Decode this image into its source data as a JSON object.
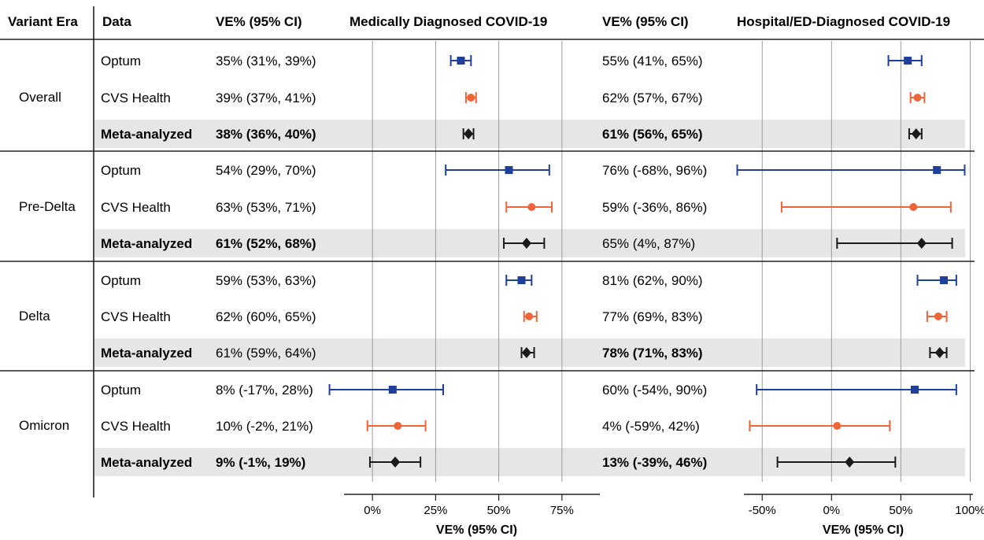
{
  "headers": {
    "era": "Variant Era",
    "data": "Data",
    "ve_left": "VE% (95% CI)",
    "panel_left": "Medically Diagnosed COVID-19",
    "ve_right": "VE% (95% CI)",
    "panel_right": "Hospital/ED-Diagnosed COVID-19"
  },
  "colors": {
    "optum": "#1f3f9c",
    "cvs": "#f0643a",
    "meta": "#1a1a1a",
    "meta_band": "#e6e6e6",
    "grid": "#9a9a9a"
  },
  "chart_data": [
    {
      "type": "forest",
      "title": "Medically Diagnosed COVID-19",
      "xlabel": "VE% (95% CI)",
      "xlim": [
        -15,
        90
      ],
      "ticks": [
        0,
        25,
        50,
        75
      ],
      "tick_labels": [
        "0%",
        "25%",
        "50%",
        "75%"
      ],
      "grid": true,
      "rows": [
        {
          "era": "Overall",
          "source": "Optum",
          "text": "35% (31%, 39%)",
          "ve": 35,
          "lo": 31,
          "hi": 39,
          "marker": "square",
          "series": "optum"
        },
        {
          "era": "Overall",
          "source": "CVS Health",
          "text": "39% (37%, 41%)",
          "ve": 39,
          "lo": 37,
          "hi": 41,
          "marker": "circle",
          "series": "cvs"
        },
        {
          "era": "Overall",
          "source": "Meta-analyzed",
          "text": "38% (36%, 40%)",
          "ve": 38,
          "lo": 36,
          "hi": 40,
          "marker": "diamond",
          "series": "meta",
          "bold": true
        },
        {
          "era": "Pre-Delta",
          "source": "Optum",
          "text": "54% (29%, 70%)",
          "ve": 54,
          "lo": 29,
          "hi": 70,
          "marker": "square",
          "series": "optum"
        },
        {
          "era": "Pre-Delta",
          "source": "CVS Health",
          "text": "63% (53%, 71%)",
          "ve": 63,
          "lo": 53,
          "hi": 71,
          "marker": "circle",
          "series": "cvs"
        },
        {
          "era": "Pre-Delta",
          "source": "Meta-analyzed",
          "text": "61% (52%, 68%)",
          "ve": 61,
          "lo": 52,
          "hi": 68,
          "marker": "diamond",
          "series": "meta",
          "bold": true
        },
        {
          "era": "Delta",
          "source": "Optum",
          "text": "59% (53%, 63%)",
          "ve": 59,
          "lo": 53,
          "hi": 63,
          "marker": "square",
          "series": "optum"
        },
        {
          "era": "Delta",
          "source": "CVS Health",
          "text": "62% (60%, 65%)",
          "ve": 62,
          "lo": 60,
          "hi": 65,
          "marker": "circle",
          "series": "cvs"
        },
        {
          "era": "Delta",
          "source": "Meta-analyzed",
          "text": "61% (59%, 64%)",
          "ve": 61,
          "lo": 59,
          "hi": 64,
          "marker": "diamond",
          "series": "meta",
          "bold": false
        },
        {
          "era": "Omicron",
          "source": "Optum",
          "text": "8% (-17%, 28%)",
          "ve": 8,
          "lo": -17,
          "hi": 28,
          "marker": "square",
          "series": "optum"
        },
        {
          "era": "Omicron",
          "source": "CVS Health",
          "text": "10% (-2%, 21%)",
          "ve": 10,
          "lo": -2,
          "hi": 21,
          "marker": "circle",
          "series": "cvs"
        },
        {
          "era": "Omicron",
          "source": "Meta-analyzed",
          "text": "9% (-1%, 19%)",
          "ve": 9,
          "lo": -1,
          "hi": 19,
          "marker": "diamond",
          "series": "meta",
          "bold": true
        }
      ]
    },
    {
      "type": "forest",
      "title": "Hospital/ED-Diagnosed COVID-19",
      "xlabel": "VE% (95% CI)",
      "xlim": [
        -70,
        102
      ],
      "ticks": [
        -50,
        0,
        50,
        100
      ],
      "tick_labels": [
        "-50%",
        "0%",
        "50%",
        "100%"
      ],
      "grid": true,
      "rows": [
        {
          "era": "Overall",
          "source": "Optum",
          "text": "55% (41%, 65%)",
          "ve": 55,
          "lo": 41,
          "hi": 65,
          "marker": "square",
          "series": "optum"
        },
        {
          "era": "Overall",
          "source": "CVS Health",
          "text": "62% (57%, 67%)",
          "ve": 62,
          "lo": 57,
          "hi": 67,
          "marker": "circle",
          "series": "cvs"
        },
        {
          "era": "Overall",
          "source": "Meta-analyzed",
          "text": "61% (56%, 65%)",
          "ve": 61,
          "lo": 56,
          "hi": 65,
          "marker": "diamond",
          "series": "meta",
          "bold": true
        },
        {
          "era": "Pre-Delta",
          "source": "Optum",
          "text": "76% (-68%, 96%)",
          "ve": 76,
          "lo": -68,
          "hi": 96,
          "marker": "square",
          "series": "optum"
        },
        {
          "era": "Pre-Delta",
          "source": "CVS Health",
          "text": "59% (-36%, 86%)",
          "ve": 59,
          "lo": -36,
          "hi": 86,
          "marker": "circle",
          "series": "cvs"
        },
        {
          "era": "Pre-Delta",
          "source": "Meta-analyzed",
          "text": "65% (4%, 87%)",
          "ve": 65,
          "lo": 4,
          "hi": 87,
          "marker": "diamond",
          "series": "meta",
          "bold": false
        },
        {
          "era": "Delta",
          "source": "Optum",
          "text": "81% (62%, 90%)",
          "ve": 81,
          "lo": 62,
          "hi": 90,
          "marker": "square",
          "series": "optum"
        },
        {
          "era": "Delta",
          "source": "CVS Health",
          "text": "77% (69%, 83%)",
          "ve": 77,
          "lo": 69,
          "hi": 83,
          "marker": "circle",
          "series": "cvs"
        },
        {
          "era": "Delta",
          "source": "Meta-analyzed",
          "text": "78% (71%, 83%)",
          "ve": 78,
          "lo": 71,
          "hi": 83,
          "marker": "diamond",
          "series": "meta",
          "bold": true
        },
        {
          "era": "Omicron",
          "source": "Optum",
          "text": "60% (-54%, 90%)",
          "ve": 60,
          "lo": -54,
          "hi": 90,
          "marker": "square",
          "series": "optum"
        },
        {
          "era": "Omicron",
          "source": "CVS Health",
          "text": "4% (-59%, 42%)",
          "ve": 4,
          "lo": -59,
          "hi": 42,
          "marker": "circle",
          "series": "cvs"
        },
        {
          "era": "Omicron",
          "source": "Meta-analyzed",
          "text": "13% (-39%, 46%)",
          "ve": 13,
          "lo": -39,
          "hi": 46,
          "marker": "diamond",
          "series": "meta",
          "bold": true
        }
      ]
    }
  ]
}
